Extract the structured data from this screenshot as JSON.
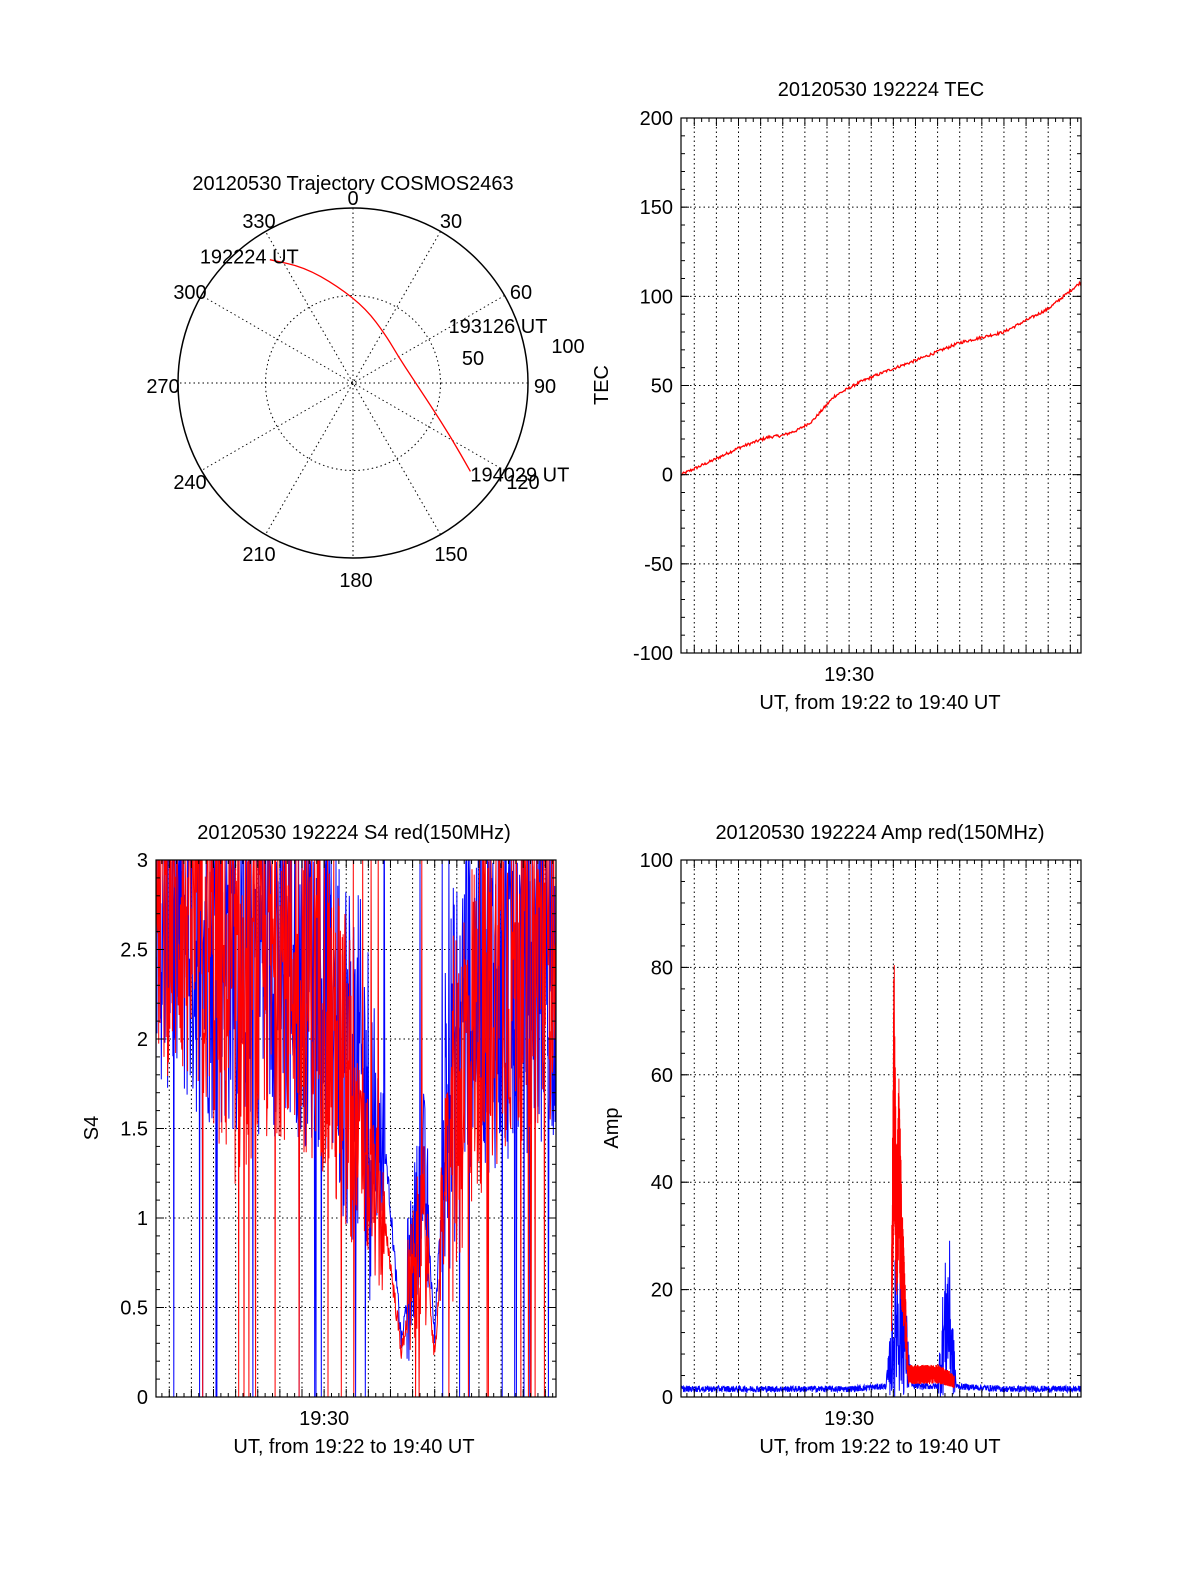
{
  "colors": {
    "red": "#ff0000",
    "blue": "#0000ff",
    "axis": "#000000"
  },
  "chart_data": [
    {
      "type": "polar",
      "title": "20120530 Trajectory COSMOS2463",
      "angle_labels": [
        "0",
        "30",
        "60",
        "90",
        "120",
        "150",
        "180",
        "210",
        "240",
        "270",
        "300",
        "330"
      ],
      "radial_labels": [
        "50",
        "100"
      ],
      "rlim": [
        0,
        100
      ],
      "grid": true,
      "series": [
        {
          "color": "#ff0000",
          "points": [
            {
              "az": 326,
              "r": 85
            },
            {
              "az": 337,
              "r": 72
            },
            {
              "az": 351,
              "r": 56
            },
            {
              "az": 10,
              "r": 43
            },
            {
              "az": 35,
              "r": 33
            },
            {
              "az": 60,
              "r": 30
            },
            {
              "az": 85,
              "r": 34
            },
            {
              "az": 106,
              "r": 46
            },
            {
              "az": 119,
              "r": 64
            },
            {
              "az": 127,
              "r": 84
            }
          ]
        }
      ],
      "annotations": [
        {
          "text": "192224 UT",
          "az": 326,
          "r": 85
        },
        {
          "text": "193126 UT",
          "az": 60,
          "r": 30
        },
        {
          "text": "194029 UT",
          "az": 127,
          "r": 84
        }
      ]
    },
    {
      "type": "line",
      "title": "20120530 192224 TEC",
      "xlabel": "UT, from 19:22 to 19:40 UT",
      "ylabel": "TEC",
      "xlim": [
        "19:22:24",
        "19:40:29"
      ],
      "x_tick_labels": [
        {
          "value": "19:30",
          "label": "19:30"
        }
      ],
      "ylim": [
        -100,
        200
      ],
      "y_ticks": [
        -100,
        -50,
        0,
        50,
        100,
        150,
        200
      ],
      "grid": true,
      "series": [
        {
          "color": "#ff0000",
          "x": [
            "19:22:24",
            "19:23:50",
            "19:25:00",
            "19:26:20",
            "19:27:00",
            "19:27:40",
            "19:28:20",
            "19:29:20",
            "19:30:30",
            "19:31:40",
            "19:33:00",
            "19:35:00",
            "19:37:00",
            "19:39:00",
            "19:40:29"
          ],
          "y": [
            0,
            8,
            15,
            21,
            22,
            25,
            30,
            44,
            52,
            58,
            64,
            74,
            80,
            93,
            108
          ]
        }
      ]
    },
    {
      "type": "line",
      "title": "20120530 192224 S4 red(150MHz)",
      "xlabel": "UT, from 19:22 to 19:40 UT",
      "ylabel": "S4",
      "xlim": [
        "19:22:24",
        "19:40:29"
      ],
      "x_tick_labels": [
        {
          "value": "19:30",
          "label": "19:30"
        }
      ],
      "ylim": [
        0,
        3
      ],
      "y_ticks": [
        0,
        0.5,
        1,
        1.5,
        2,
        2.5,
        3
      ],
      "grid": true,
      "series": [
        {
          "color": "#0000ff",
          "x": [
            "19:22:24",
            "19:24:00",
            "19:26:00",
            "19:28:00",
            "19:30:00",
            "19:31:00",
            "19:32:00",
            "19:32:50",
            "19:33:30",
            "19:34:30",
            "19:35:00",
            "19:35:30",
            "19:36:30",
            "19:38:00",
            "19:40:29"
          ],
          "y": [
            2.8,
            2.6,
            2.5,
            2.5,
            2.4,
            2.0,
            1.6,
            1.3,
            0.3,
            1.3,
            0.35,
            1.6,
            2.3,
            2.3,
            2.5
          ]
        },
        {
          "color": "#ff0000",
          "x": [
            "19:22:24",
            "19:24:00",
            "19:26:00",
            "19:28:00",
            "19:30:00",
            "19:31:00",
            "19:32:00",
            "19:32:50",
            "19:33:30",
            "19:34:30",
            "19:35:00",
            "19:35:30",
            "19:36:30",
            "19:38:00",
            "19:40:29"
          ],
          "y": [
            2.9,
            2.7,
            2.2,
            2.5,
            2.3,
            1.7,
            1.2,
            0.9,
            0.25,
            1.0,
            0.2,
            1.3,
            2.0,
            2.4,
            2.6
          ]
        }
      ]
    },
    {
      "type": "line",
      "title": "20120530 192224 Amp red(150MHz)",
      "xlabel": "UT, from 19:22 to 19:40 UT",
      "ylabel": "Amp",
      "xlim": [
        "19:22:24",
        "19:40:29"
      ],
      "x_tick_labels": [
        {
          "value": "19:30",
          "label": "19:30"
        }
      ],
      "ylim": [
        0,
        100
      ],
      "y_ticks": [
        0,
        20,
        40,
        60,
        80,
        100
      ],
      "grid": true,
      "series": [
        {
          "color": "#0000ff",
          "x": [
            "19:22:24",
            "19:26:00",
            "19:30:00",
            "19:31:40",
            "19:32:00",
            "19:32:10",
            "19:32:30",
            "19:32:50",
            "19:34:00",
            "19:34:10",
            "19:34:30",
            "19:34:50",
            "19:37:00",
            "19:40:29"
          ],
          "y": [
            1.5,
            1.5,
            1.5,
            2,
            18,
            30,
            20,
            2,
            2,
            15,
            30,
            2,
            1.5,
            1.5
          ]
        },
        {
          "color": "#ff0000",
          "x": [
            "19:31:55",
            "19:32:02",
            "19:32:08",
            "19:32:15",
            "19:32:25",
            "19:32:40",
            "19:34:05",
            "19:34:30",
            "19:34:45"
          ],
          "y": [
            25,
            87,
            43,
            60,
            35,
            6,
            6,
            5,
            4
          ]
        }
      ]
    }
  ]
}
